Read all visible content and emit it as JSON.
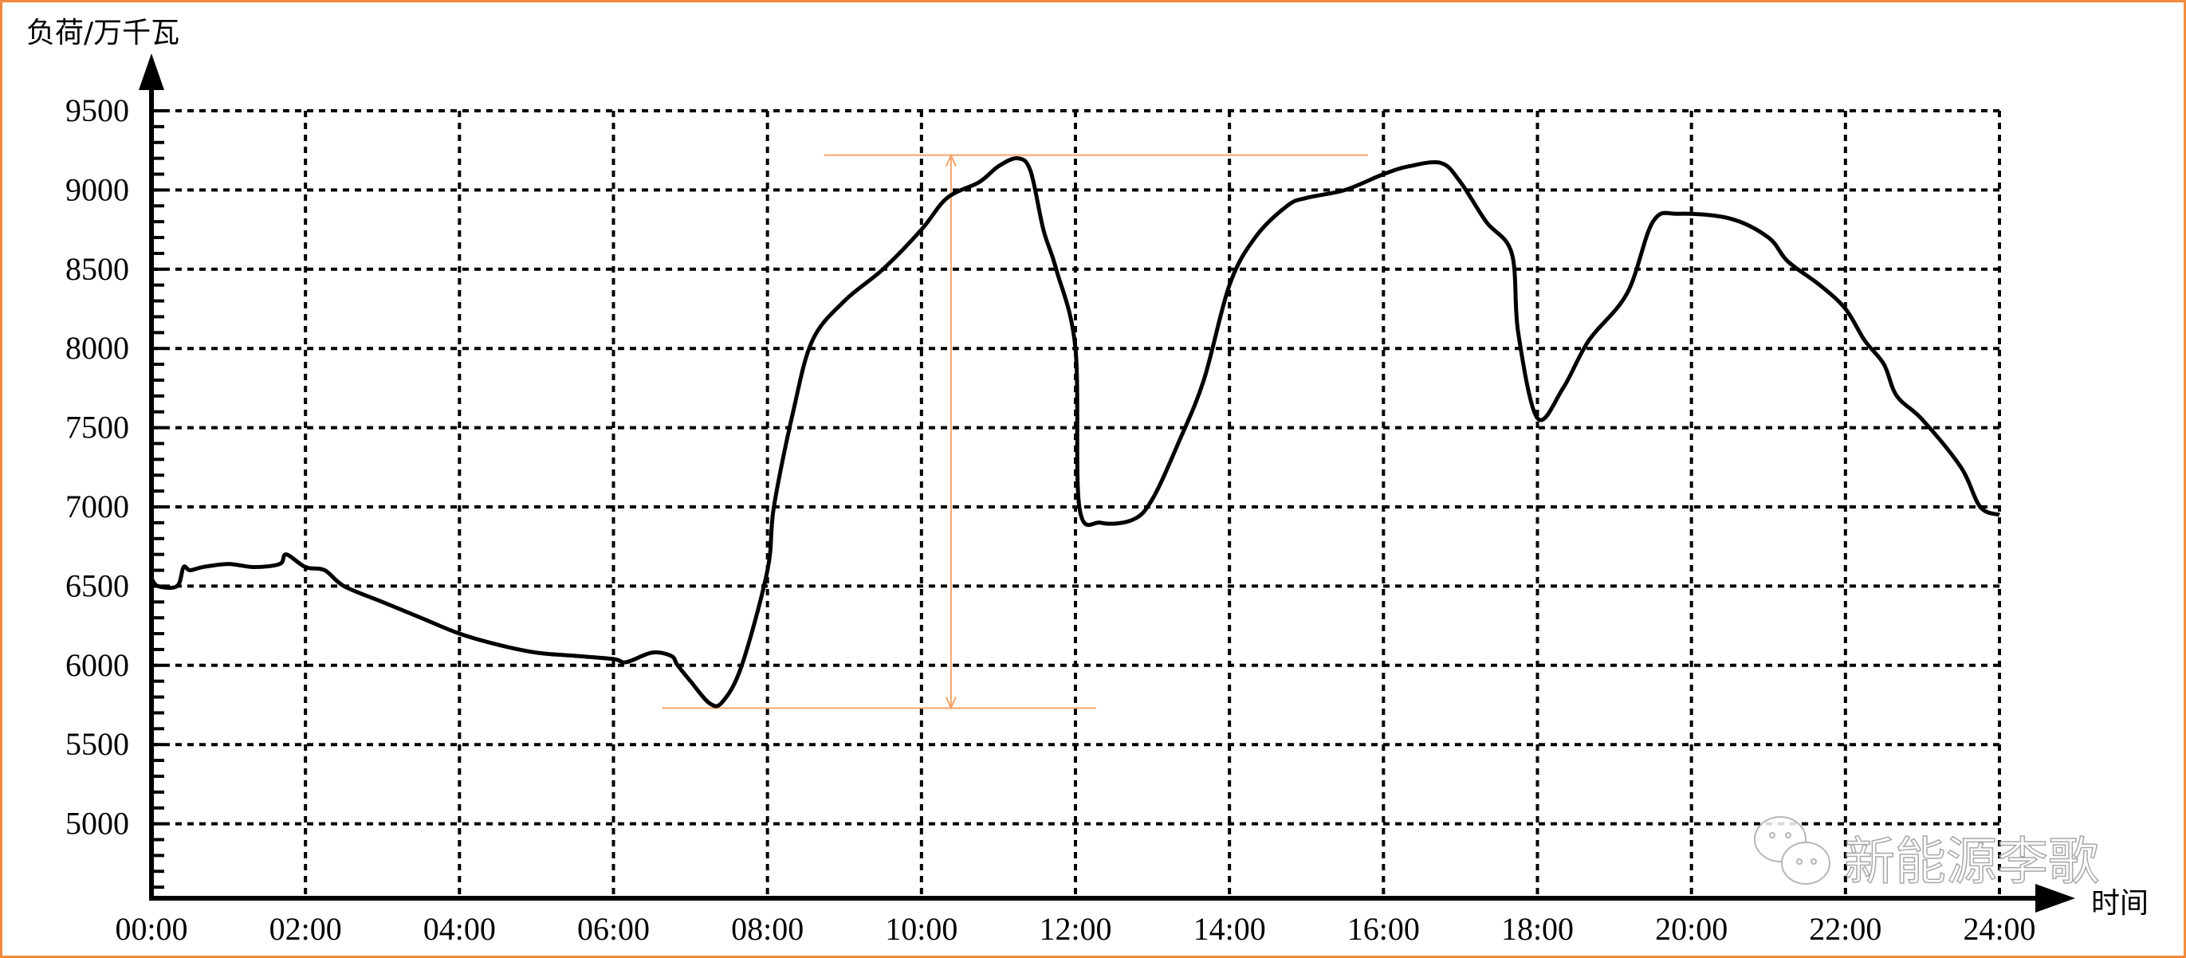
{
  "chart_data": {
    "type": "line",
    "title": "",
    "ylabel": "负荷/万千瓦",
    "xlabel": "时间",
    "ylim": [
      4500,
      9500
    ],
    "xlim": [
      "00:00",
      "24:00"
    ],
    "yticks": [
      5000,
      5500,
      6000,
      6500,
      7000,
      7500,
      8000,
      8500,
      9000,
      9500
    ],
    "xticks": [
      "00:00",
      "02:00",
      "04:00",
      "06:00",
      "08:00",
      "10:00",
      "12:00",
      "14:00",
      "16:00",
      "18:00",
      "20:00",
      "22:00",
      "24:00"
    ],
    "grid": true,
    "grid_style": "dotted",
    "line_color": "#000000",
    "annotation_color": "#f5a46a",
    "series": [
      {
        "x": [
          "00:00",
          "00:05",
          "00:20",
          "00:25",
          "00:30",
          "00:40",
          "01:00",
          "01:20",
          "01:40",
          "01:45",
          "02:00",
          "02:15",
          "02:30",
          "03:00",
          "03:30",
          "04:00",
          "04:30",
          "05:00",
          "05:30",
          "06:00",
          "06:10",
          "06:30",
          "06:45",
          "06:50",
          "07:00",
          "07:15",
          "07:25",
          "07:40",
          "08:00",
          "08:05",
          "08:20",
          "08:35",
          "09:00",
          "09:30",
          "10:00",
          "10:20",
          "10:45",
          "11:00",
          "11:15",
          "11:25",
          "11:35",
          "11:45",
          "12:00",
          "12:03",
          "12:20",
          "12:45",
          "13:00",
          "13:20",
          "13:40",
          "14:00",
          "14:20",
          "14:45",
          "15:00",
          "15:30",
          "16:00",
          "16:20",
          "16:45",
          "17:00",
          "17:20",
          "17:40",
          "17:45",
          "18:00",
          "18:20",
          "18:40",
          "19:10",
          "19:30",
          "19:50",
          "20:30",
          "21:00",
          "21:15",
          "21:40",
          "22:00",
          "22:15",
          "22:30",
          "22:40",
          "23:00",
          "23:30",
          "23:45",
          "24:00"
        ],
        "values": [
          6550,
          6500,
          6500,
          6620,
          6600,
          6620,
          6640,
          6620,
          6640,
          6700,
          6620,
          6600,
          6500,
          6400,
          6300,
          6200,
          6130,
          6080,
          6060,
          6040,
          6020,
          6080,
          6060,
          6000,
          5900,
          5760,
          5770,
          6000,
          6600,
          7000,
          7600,
          8050,
          8300,
          8500,
          8750,
          8950,
          9050,
          9150,
          9200,
          9120,
          8750,
          8500,
          8000,
          7000,
          6900,
          6920,
          7050,
          7400,
          7800,
          8400,
          8700,
          8900,
          8950,
          9000,
          9100,
          9150,
          9170,
          9050,
          8800,
          8600,
          8100,
          7560,
          7750,
          8050,
          8350,
          8800,
          8850,
          8820,
          8700,
          8550,
          8400,
          8250,
          8050,
          7900,
          7700,
          7550,
          7250,
          7000,
          6950
        ]
      }
    ],
    "annotations": {
      "peak_line": {
        "value": 9220,
        "from": "08:44",
        "to": "15:48"
      },
      "valley_line": {
        "value": 5730,
        "from": "06:38",
        "to": "12:16"
      },
      "range_arrow": {
        "at": "10:23",
        "from": 5730,
        "to": 9220
      }
    }
  },
  "watermark": {
    "text": "新能源李歌",
    "icon": "wechat-icon"
  }
}
